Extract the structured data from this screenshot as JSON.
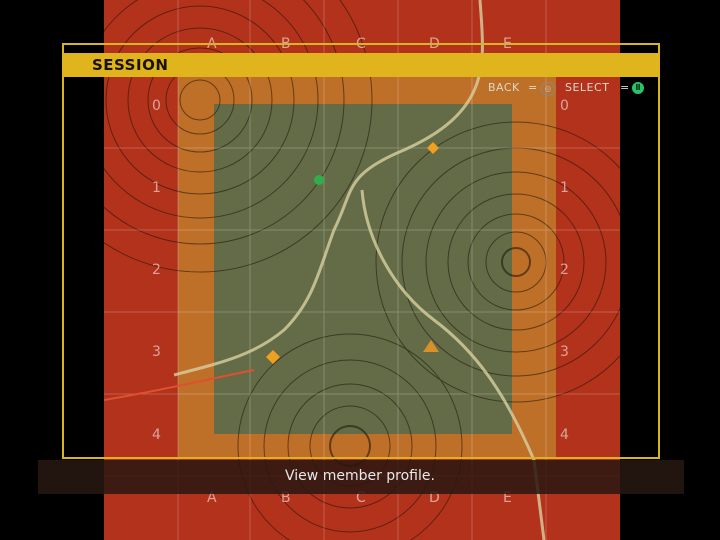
{
  "header": {
    "title": "SESSION"
  },
  "hints": {
    "back_label": "BACK",
    "back_glyph": "◎",
    "select_label": "SELECT",
    "select_glyph": "Ⅱ",
    "separator": "="
  },
  "grid": {
    "columns": [
      "A",
      "B",
      "C",
      "D",
      "E"
    ],
    "rows": [
      "0",
      "1",
      "2",
      "3",
      "4"
    ]
  },
  "status": {
    "message": "View member profile."
  },
  "colors": {
    "danger_zone": "#b3321c",
    "warning_zone": "#c8822a",
    "safe_zone": "#5c6b4a",
    "header_bar": "#e0b41c",
    "select_button": "#29c46a",
    "marker_orange": "#f0a020",
    "marker_green": "#2fae4a"
  },
  "markers": [
    {
      "name": "member-marker-d0",
      "color": "orange",
      "shape": "diamond"
    },
    {
      "name": "member-marker-b1",
      "color": "green",
      "shape": "dot"
    },
    {
      "name": "member-marker-b3",
      "color": "orange",
      "shape": "diamond"
    },
    {
      "name": "member-marker-d3",
      "color": "orange",
      "shape": "triangle"
    }
  ]
}
